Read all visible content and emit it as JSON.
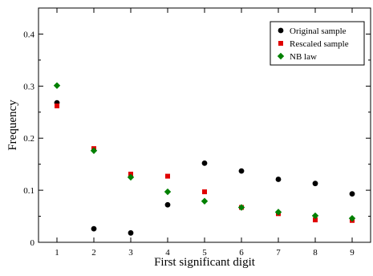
{
  "chart_data": {
    "type": "scatter",
    "xlabel": "First significant digit",
    "ylabel": "Frequency",
    "xlim": [
      0.5,
      9.5
    ],
    "ylim": [
      0,
      0.45
    ],
    "x_ticks": [
      1,
      2,
      3,
      4,
      5,
      6,
      7,
      8,
      9
    ],
    "y_ticks": [
      0,
      0.1,
      0.2,
      0.3,
      0.4
    ],
    "y_tick_labels": [
      "0",
      "0.1",
      "0.2",
      "0.3",
      "0.4"
    ],
    "grid": false,
    "legend_position": "top-right",
    "series": [
      {
        "name": "Original sample",
        "marker": "circle",
        "color": "#000000",
        "x": [
          1,
          2,
          3,
          4,
          5,
          6,
          7,
          8,
          9
        ],
        "values": [
          0.268,
          0.026,
          0.018,
          0.072,
          0.152,
          0.137,
          0.121,
          0.113,
          0.093
        ]
      },
      {
        "name": "Rescaled sample",
        "marker": "square",
        "color": "#e00000",
        "x": [
          1,
          2,
          3,
          4,
          5,
          6,
          7,
          8,
          9
        ],
        "values": [
          0.262,
          0.18,
          0.131,
          0.127,
          0.097,
          0.067,
          0.055,
          0.043,
          0.042
        ]
      },
      {
        "name": "NB law",
        "marker": "diamond",
        "color": "#008000",
        "x": [
          1,
          2,
          3,
          4,
          5,
          6,
          7,
          8,
          9
        ],
        "values": [
          0.301,
          0.176,
          0.125,
          0.097,
          0.079,
          0.067,
          0.058,
          0.051,
          0.046
        ]
      }
    ]
  }
}
